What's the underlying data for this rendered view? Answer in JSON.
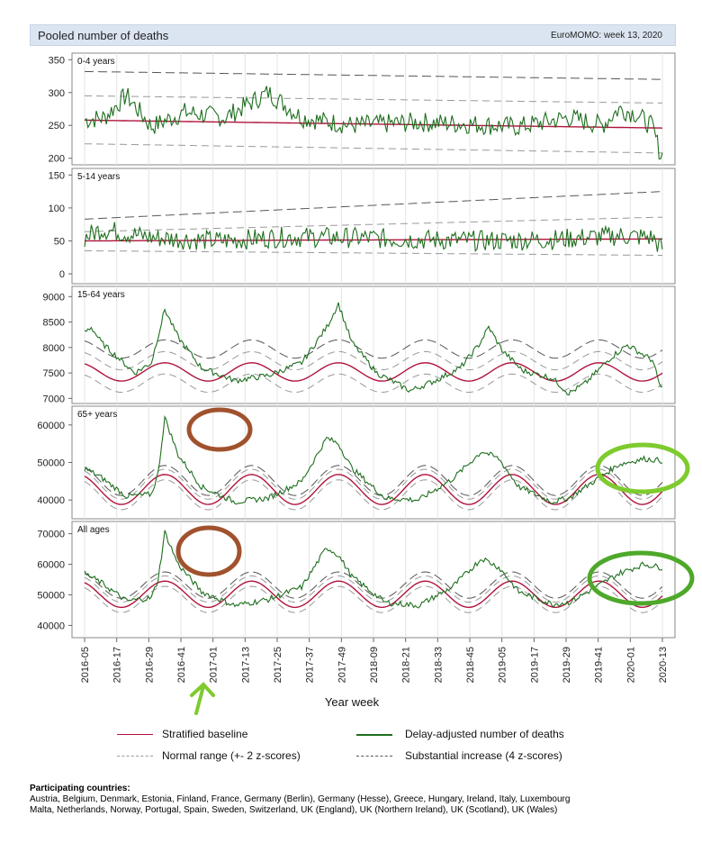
{
  "header": {
    "title": "Pooled number of deaths",
    "source": "EuroMOMO: week 13, 2020"
  },
  "chart_data": {
    "type": "line",
    "xlabel": "Year week",
    "x_ticks": [
      "2016-05",
      "2016-17",
      "2016-29",
      "2016-41",
      "2017-01",
      "2017-13",
      "2017-25",
      "2017-37",
      "2017-49",
      "2018-09",
      "2018-21",
      "2018-33",
      "2018-45",
      "2019-05",
      "2019-17",
      "2019-29",
      "2019-41",
      "2020-01",
      "2020-13"
    ],
    "panels": [
      {
        "label": "0-4 years",
        "ylim": [
          190,
          360
        ],
        "yticks": [
          200,
          250,
          300,
          350
        ],
        "baseline": [
          258,
          246
        ],
        "lower_2z": [
          222,
          208
        ],
        "upper_2z": [
          295,
          284
        ],
        "upper_4z": [
          332,
          320
        ],
        "deaths_anchors": [
          [
            0,
            258
          ],
          [
            12,
            262
          ],
          [
            25,
            296
          ],
          [
            40,
            248
          ],
          [
            60,
            270
          ],
          [
            84,
            262
          ],
          [
            110,
            300
          ],
          [
            130,
            262
          ],
          [
            160,
            250
          ],
          [
            200,
            255
          ],
          [
            230,
            252
          ],
          [
            260,
            248
          ],
          [
            290,
            262
          ],
          [
            310,
            250
          ],
          [
            320,
            275
          ],
          [
            330,
            268
          ],
          [
            340,
            248
          ],
          [
            345,
            205
          ]
        ]
      },
      {
        "label": "5-14 years",
        "ylim": [
          -15,
          160
        ],
        "yticks": [
          0,
          50,
          100,
          150
        ],
        "baseline": [
          50,
          53
        ],
        "lower_2z": [
          35,
          28
        ],
        "upper_2z": [
          64,
          86
        ],
        "upper_4z": [
          83,
          125
        ],
        "deaths_anchors": [
          [
            0,
            55
          ],
          [
            10,
            68
          ],
          [
            40,
            55
          ],
          [
            80,
            50
          ],
          [
            120,
            56
          ],
          [
            160,
            55
          ],
          [
            200,
            52
          ],
          [
            240,
            50
          ],
          [
            280,
            52
          ],
          [
            300,
            55
          ],
          [
            320,
            58
          ],
          [
            340,
            55
          ],
          [
            345,
            40
          ]
        ]
      },
      {
        "label": "15-64 years",
        "ylim": [
          6900,
          9200
        ],
        "yticks": [
          7000,
          7500,
          8000,
          8500,
          9000
        ],
        "seasonal": {
          "base_mean": 7520,
          "base_amp": 180,
          "band2": 220,
          "band4": 450,
          "peak_weeks": [
            48,
            150,
            240,
            335
          ]
        },
        "peaks": [
          [
            48,
            8750
          ],
          [
            150,
            8860
          ],
          [
            242,
            8400
          ],
          [
            325,
            8050
          ]
        ],
        "deaths_anchors": [
          [
            0,
            8300
          ],
          [
            4,
            8400
          ],
          [
            10,
            8100
          ],
          [
            20,
            7800
          ],
          [
            30,
            7500
          ],
          [
            40,
            7700
          ],
          [
            48,
            8750
          ],
          [
            56,
            8200
          ],
          [
            70,
            7600
          ],
          [
            90,
            7350
          ],
          [
            110,
            7450
          ],
          [
            130,
            7700
          ],
          [
            145,
            8400
          ],
          [
            152,
            8860
          ],
          [
            160,
            8100
          ],
          [
            175,
            7500
          ],
          [
            195,
            7150
          ],
          [
            210,
            7350
          ],
          [
            225,
            7600
          ],
          [
            236,
            8050
          ],
          [
            242,
            8400
          ],
          [
            250,
            7950
          ],
          [
            262,
            7550
          ],
          [
            280,
            7400
          ],
          [
            290,
            7100
          ],
          [
            300,
            7300
          ],
          [
            315,
            7800
          ],
          [
            325,
            8050
          ],
          [
            340,
            7750
          ],
          [
            345,
            7200
          ]
        ]
      },
      {
        "label": "65+ years",
        "ylim": [
          35000,
          65000
        ],
        "yticks": [
          40000,
          50000,
          60000
        ],
        "seasonal": {
          "base_mean": 42800,
          "base_amp": 4000,
          "band2": 1400,
          "band4": 2400,
          "peak_weeks": [
            48,
            150,
            240,
            335
          ]
        },
        "deaths_anchors": [
          [
            0,
            48500
          ],
          [
            10,
            46000
          ],
          [
            25,
            41000
          ],
          [
            40,
            41500
          ],
          [
            44,
            47000
          ],
          [
            48,
            62000
          ],
          [
            56,
            52000
          ],
          [
            70,
            43500
          ],
          [
            90,
            39500
          ],
          [
            110,
            40500
          ],
          [
            130,
            45000
          ],
          [
            145,
            56500
          ],
          [
            152,
            55000
          ],
          [
            160,
            48500
          ],
          [
            180,
            40500
          ],
          [
            200,
            40000
          ],
          [
            220,
            45500
          ],
          [
            238,
            53000
          ],
          [
            248,
            51000
          ],
          [
            260,
            43500
          ],
          [
            280,
            39500
          ],
          [
            290,
            40500
          ],
          [
            300,
            43500
          ],
          [
            320,
            49500
          ],
          [
            335,
            51000
          ],
          [
            345,
            50500
          ]
        ]
      },
      {
        "label": "All ages",
        "ylim": [
          36000,
          74000
        ],
        "yticks": [
          40000,
          50000,
          60000,
          70000
        ],
        "seasonal": {
          "base_mean": 50200,
          "base_amp": 4300,
          "band2": 1700,
          "band4": 3000,
          "peak_weeks": [
            48,
            150,
            240,
            335
          ]
        },
        "deaths_anchors": [
          [
            0,
            57000
          ],
          [
            10,
            54000
          ],
          [
            25,
            48000
          ],
          [
            40,
            49000
          ],
          [
            44,
            55000
          ],
          [
            48,
            70500
          ],
          [
            56,
            60000
          ],
          [
            70,
            51000
          ],
          [
            90,
            46500
          ],
          [
            110,
            48500
          ],
          [
            130,
            52500
          ],
          [
            145,
            65500
          ],
          [
            152,
            63000
          ],
          [
            160,
            56000
          ],
          [
            180,
            47500
          ],
          [
            200,
            46500
          ],
          [
            220,
            52500
          ],
          [
            238,
            62000
          ],
          [
            248,
            59000
          ],
          [
            260,
            51000
          ],
          [
            280,
            47000
          ],
          [
            290,
            47500
          ],
          [
            300,
            50500
          ],
          [
            320,
            57000
          ],
          [
            335,
            60000
          ],
          [
            345,
            59000
          ]
        ]
      }
    ],
    "legend": {
      "baseline": "Stratified baseline",
      "deaths": "Delay-adjusted number of deaths",
      "normal": "Normal range (+- 2 z-scores)",
      "substantial": "Substantial increase (4 z-scores)"
    },
    "colors": {
      "baseline": "#b0143c",
      "deaths": "#1e6e1e",
      "bands": "#999999",
      "annot_brown": "#a0522d",
      "annot_green": "#7ecb2e",
      "annot_green_dark": "#4ea82a"
    }
  },
  "footer": {
    "title": "Participating countries:",
    "line1": "Austria, Belgium, Denmark, Estonia, Finland, France, Germany (Berlin), Germany (Hesse), Greece, Hungary, Ireland, Italy, Luxembourg",
    "line2": "Malta, Netherlands, Norway, Portugal, Spain, Sweden, Switzerland, UK (England), UK (Northern Ireland), UK (Scotland), UK (Wales)"
  }
}
